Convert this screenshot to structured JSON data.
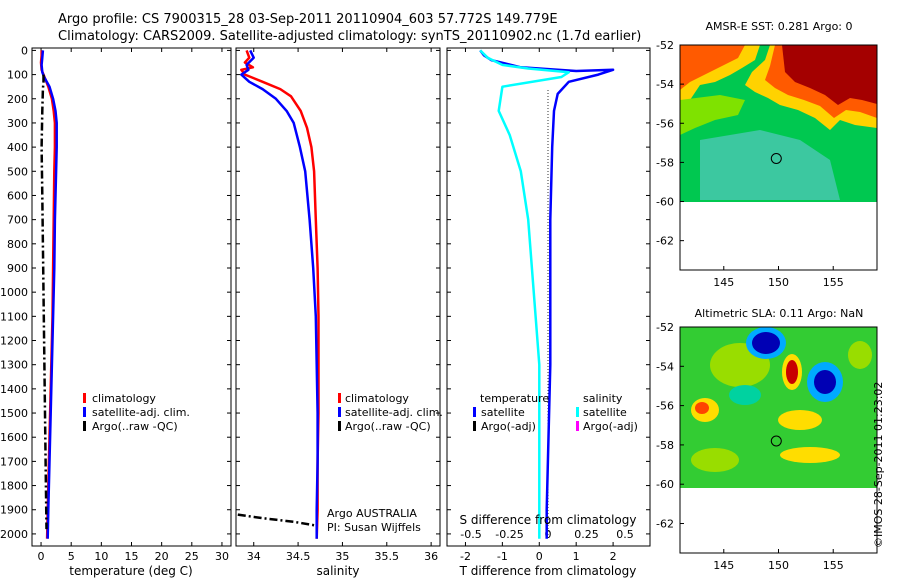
{
  "title_line1": "Argo profile: CS 7900315_28 03-Sep-2011 20110904_603 57.772S 149.779E",
  "title_line2": "Climatology: CARS2009. Satellite-adjusted climatology: synTS_20110902.nc (1.7d earlier)",
  "credit": "©IMOS 28-Sep-2011 01:23:02",
  "colors": {
    "climatology": "#ff0000",
    "satellite": "#0000ff",
    "argo": "#000000",
    "s_satellite": "#00ffff",
    "s_argo": "#ff00ff"
  },
  "depth_ticks": [
    0,
    100,
    200,
    300,
    400,
    500,
    600,
    700,
    800,
    900,
    1000,
    1100,
    1200,
    1300,
    1400,
    1500,
    1600,
    1700,
    1800,
    1900,
    2000
  ],
  "legend_temp": {
    "climatology": "climatology",
    "satellite": "satellite-adj. clim.",
    "argo": "Argo(..raw -QC)"
  },
  "legend_sal": {
    "climatology": "climatology",
    "satellite": "satellite-adj. clim.",
    "argo": "Argo(..raw -QC)"
  },
  "argo_note": {
    "line1": "Argo AUSTRALIA",
    "line2": "PI: Susan Wijffels"
  },
  "legend_diff": {
    "t_header": "temperature",
    "s_header": "salinity",
    "t_sat": "satellite",
    "t_argo": "Argo(-adj)",
    "s_sat": "satellite",
    "s_argo": "Argo(-adj)"
  },
  "chart_data": [
    {
      "type": "line",
      "xlabel": "temperature (deg C)",
      "ylabel": "",
      "xlim": [
        -1.5,
        31.5
      ],
      "ylim": [
        2050,
        -10
      ],
      "xticks": [
        0,
        5,
        10,
        15,
        20,
        25,
        30
      ],
      "series": [
        {
          "name": "climatology",
          "points": [
            [
              0.1,
              0
            ],
            [
              0.1,
              20
            ],
            [
              0.0,
              50
            ],
            [
              0.1,
              80
            ],
            [
              0.4,
              100
            ],
            [
              1.2,
              150
            ],
            [
              1.8,
              200
            ],
            [
              2.1,
              250
            ],
            [
              2.3,
              300
            ],
            [
              2.3,
              400
            ],
            [
              2.2,
              500
            ],
            [
              2.1,
              700
            ],
            [
              2.0,
              900
            ],
            [
              1.9,
              1100
            ],
            [
              1.7,
              1300
            ],
            [
              1.5,
              1500
            ],
            [
              1.3,
              1700
            ],
            [
              1.1,
              1900
            ],
            [
              1.0,
              2020
            ]
          ]
        },
        {
          "name": "satellite-adj. clim.",
          "points": [
            [
              0.3,
              0
            ],
            [
              0.2,
              30
            ],
            [
              0.1,
              60
            ],
            [
              0.2,
              90
            ],
            [
              0.5,
              110
            ],
            [
              1.4,
              150
            ],
            [
              2.0,
              200
            ],
            [
              2.4,
              250
            ],
            [
              2.6,
              300
            ],
            [
              2.6,
              400
            ],
            [
              2.5,
              500
            ],
            [
              2.3,
              700
            ],
            [
              2.2,
              900
            ],
            [
              2.0,
              1100
            ],
            [
              1.8,
              1300
            ],
            [
              1.6,
              1500
            ],
            [
              1.4,
              1700
            ],
            [
              1.2,
              1900
            ],
            [
              1.1,
              2020
            ]
          ]
        },
        {
          "name": "Argo(..raw -QC)",
          "points": [
            [
              0.4,
              100
            ],
            [
              0.4,
              130
            ],
            [
              0.3,
              160
            ],
            [
              0.2,
              250
            ],
            [
              0.1,
              400
            ],
            [
              0.2,
              600
            ],
            [
              0.3,
              800
            ],
            [
              0.4,
              1000
            ],
            [
              0.5,
              1200
            ],
            [
              0.6,
              1400
            ],
            [
              0.7,
              1600
            ],
            [
              0.8,
              1800
            ],
            [
              0.9,
              1980
            ]
          ]
        }
      ]
    },
    {
      "type": "line",
      "xlabel": "salinity",
      "ylabel": "",
      "xlim": [
        33.8,
        36.1
      ],
      "ylim": [
        2050,
        -10
      ],
      "xticks": [
        34,
        34.5,
        35,
        35.5,
        36
      ],
      "series": [
        {
          "name": "climatology",
          "points": [
            [
              33.92,
              0
            ],
            [
              33.95,
              30
            ],
            [
              33.9,
              50
            ],
            [
              33.99,
              70
            ],
            [
              33.86,
              80
            ],
            [
              33.9,
              100
            ],
            [
              34.1,
              130
            ],
            [
              34.3,
              160
            ],
            [
              34.42,
              190
            ],
            [
              34.53,
              250
            ],
            [
              34.6,
              320
            ],
            [
              34.65,
              400
            ],
            [
              34.68,
              500
            ],
            [
              34.7,
              700
            ],
            [
              34.72,
              900
            ],
            [
              34.73,
              1100
            ],
            [
              34.73,
              1300
            ],
            [
              34.73,
              1500
            ],
            [
              34.72,
              1700
            ],
            [
              34.72,
              1900
            ],
            [
              34.71,
              2020
            ]
          ]
        },
        {
          "name": "satellite-adj. clim.",
          "points": [
            [
              33.96,
              0
            ],
            [
              34.0,
              30
            ],
            [
              33.92,
              60
            ],
            [
              33.94,
              80
            ],
            [
              33.86,
              100
            ],
            [
              33.95,
              130
            ],
            [
              34.1,
              160
            ],
            [
              34.25,
              200
            ],
            [
              34.37,
              250
            ],
            [
              34.45,
              300
            ],
            [
              34.52,
              400
            ],
            [
              34.58,
              500
            ],
            [
              34.63,
              700
            ],
            [
              34.67,
              900
            ],
            [
              34.7,
              1100
            ],
            [
              34.71,
              1300
            ],
            [
              34.72,
              1500
            ],
            [
              34.72,
              1700
            ],
            [
              34.71,
              1900
            ],
            [
              34.71,
              2020
            ]
          ]
        },
        {
          "name": "Argo(..raw -QC)",
          "points": [
            [
              33.82,
              1920
            ],
            [
              34.1,
              1935
            ],
            [
              34.45,
              1950
            ],
            [
              34.7,
              1965
            ]
          ]
        }
      ]
    },
    {
      "type": "line",
      "xlabel": "T difference from climatology",
      "x2label": "S difference from climatology",
      "xlim": [
        -2.5,
        3.0
      ],
      "x2ticks": [
        -0.5,
        -0.25,
        0,
        0.25,
        0.5
      ],
      "ylim": [
        2050,
        -10
      ],
      "xticks": [
        -2,
        -1,
        0,
        1,
        2
      ],
      "series": [
        {
          "name": "T satellite",
          "points": [
            [
              -1.6,
              0
            ],
            [
              -1.5,
              20
            ],
            [
              -1.3,
              40
            ],
            [
              -0.5,
              70
            ],
            [
              1.0,
              85
            ],
            [
              2.0,
              80
            ],
            [
              1.6,
              100
            ],
            [
              0.8,
              130
            ],
            [
              0.5,
              180
            ],
            [
              0.4,
              250
            ],
            [
              0.35,
              400
            ],
            [
              0.3,
              700
            ],
            [
              0.3,
              1000
            ],
            [
              0.3,
              1300
            ],
            [
              0.25,
              1600
            ],
            [
              0.2,
              1900
            ],
            [
              0.2,
              2020
            ]
          ]
        },
        {
          "name": "S satellite",
          "points": [
            [
              -1.6,
              0
            ],
            [
              -1.4,
              30
            ],
            [
              -1.0,
              60
            ],
            [
              -0.3,
              75
            ],
            [
              0.8,
              90
            ],
            [
              0.6,
              110
            ],
            [
              -1.0,
              150
            ],
            [
              -1.1,
              250
            ],
            [
              -0.8,
              350
            ],
            [
              -0.5,
              500
            ],
            [
              -0.3,
              700
            ],
            [
              -0.2,
              900
            ],
            [
              -0.1,
              1100
            ],
            [
              0.0,
              1300
            ],
            [
              0.0,
              1600
            ],
            [
              0.0,
              1900
            ],
            [
              0.0,
              2020
            ]
          ]
        }
      ]
    },
    {
      "type": "heatmap",
      "title": "AMSR-E SST: 0.281 Argo: 0",
      "xlim": [
        141,
        159
      ],
      "ylim": [
        -63.5,
        -52
      ],
      "xticks": [
        145,
        150,
        155
      ],
      "yticks": [
        -52,
        -54,
        -56,
        -58,
        -60,
        -62
      ],
      "argo_position": [
        149.8,
        -57.8
      ],
      "colors": [
        "#a40000",
        "#ff5a00",
        "#ffd200",
        "#7fe200",
        "#00c850",
        "#3cc8a0"
      ]
    },
    {
      "type": "heatmap",
      "title": "Altimetric SLA: 0.11 Argo: NaN",
      "xlim": [
        141,
        159
      ],
      "ylim": [
        -63.5,
        -52
      ],
      "xticks": [
        145,
        150,
        155
      ],
      "yticks": [
        -52,
        -54,
        -56,
        -58,
        -60,
        -62
      ],
      "argo_position": [
        149.8,
        -57.8
      ],
      "colors": [
        "#0000b4",
        "#00aaff",
        "#00d2a0",
        "#33cc33",
        "#99dd00",
        "#ffdd00",
        "#ff4400",
        "#c80000"
      ]
    }
  ]
}
